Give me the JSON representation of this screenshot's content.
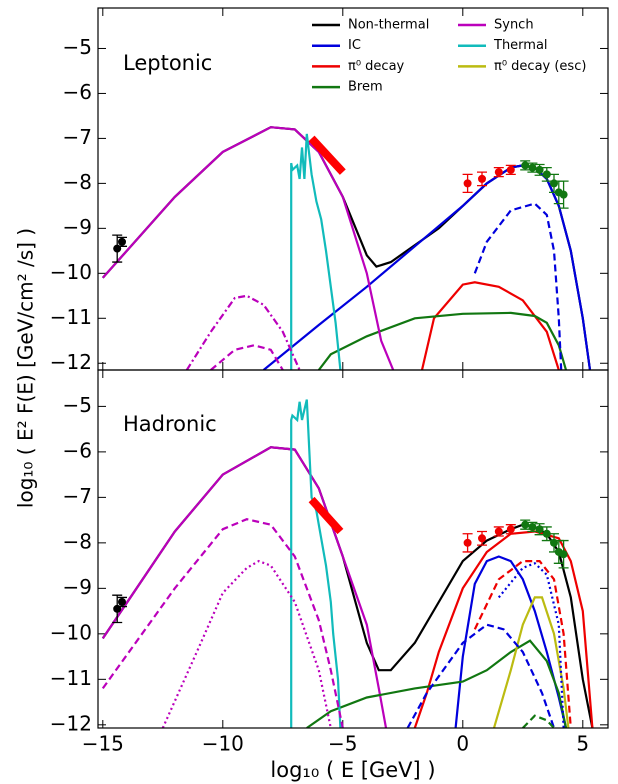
{
  "chart_data": [
    {
      "type": "line",
      "label": "Leptonic",
      "ylabel": "log₁₀ ( E² F(E) [GeV/cm² /s] )",
      "xlim": [
        -15.2,
        6.05
      ],
      "ylim": [
        -12.15,
        -4.1
      ],
      "yticks": [
        {
          "value": -5,
          "label": "−5"
        },
        {
          "value": -6,
          "label": "−6"
        },
        {
          "value": -7,
          "label": "−7"
        },
        {
          "value": -8,
          "label": "−8"
        },
        {
          "value": -9,
          "label": "−9"
        },
        {
          "value": -10,
          "label": "−10"
        },
        {
          "value": -11,
          "label": "−11"
        },
        {
          "value": -12,
          "label": "−12"
        }
      ],
      "series": [
        {
          "name": "Non-thermal",
          "color": "#000000",
          "dash": "solid",
          "x": [
            -15,
            -12,
            -10,
            -8,
            -7,
            -6,
            -5,
            -4,
            -3.6,
            -3,
            -1,
            0,
            1,
            2,
            2.5,
            3,
            3.5,
            4,
            4.5,
            5,
            5.3
          ],
          "values": [
            -10.1,
            -8.3,
            -7.3,
            -6.75,
            -6.8,
            -7.3,
            -8.3,
            -9.6,
            -9.85,
            -9.75,
            -9.0,
            -8.5,
            -8.0,
            -7.65,
            -7.6,
            -7.65,
            -7.9,
            -8.5,
            -9.5,
            -11,
            -12.15
          ]
        },
        {
          "name": "IC",
          "color": "#0000dd",
          "dash": "solid",
          "x": [
            -8.3,
            -6,
            -4,
            -2,
            0,
            1,
            2,
            2.5,
            3,
            3.5,
            4,
            4.5,
            5,
            5.3
          ],
          "values": [
            -12.15,
            -11.15,
            -10.3,
            -9.4,
            -8.5,
            -8.0,
            -7.65,
            -7.6,
            -7.65,
            -7.9,
            -8.5,
            -9.5,
            -11,
            -12.15
          ]
        },
        {
          "name": "π⁰ decay",
          "color": "#ee0000",
          "dash": "solid",
          "x": [
            -1.7,
            -1.2,
            0,
            0.5,
            1.5,
            2.5,
            3.5,
            4
          ],
          "values": [
            -12.15,
            -11,
            -10.25,
            -10.2,
            -10.3,
            -10.6,
            -11.3,
            -12.15
          ]
        },
        {
          "name": "Brem",
          "color": "#117711",
          "dash": "solid",
          "x": [
            -6,
            -5.5,
            -4,
            -2,
            0,
            2,
            3,
            3.5,
            4,
            4.3
          ],
          "values": [
            -12.15,
            -11.8,
            -11.4,
            -11.0,
            -10.9,
            -10.88,
            -10.95,
            -11.1,
            -11.6,
            -12.15
          ]
        },
        {
          "name": "Synch",
          "color": "#bb00bb",
          "dash": "solid",
          "x": [
            -15,
            -12,
            -10,
            -8,
            -7,
            -6,
            -5,
            -4,
            -3.4,
            -2.9
          ],
          "values": [
            -10.1,
            -8.3,
            -7.3,
            -6.75,
            -6.8,
            -7.3,
            -8.3,
            -10,
            -11.5,
            -12.15
          ]
        },
        {
          "name": "Thermal",
          "color": "#11bbbb",
          "dash": "solid",
          "x": [
            -7.15,
            -7.15,
            -7.1,
            -6.9,
            -6.8,
            -6.7,
            -6.6,
            -6.5,
            -6.3,
            -6.1,
            -5.9,
            -5.7,
            -5.5,
            -5.3,
            -5.1
          ],
          "values": [
            -12.15,
            -7.55,
            -7.7,
            -7.6,
            -7.9,
            -7.2,
            -7.9,
            -6.9,
            -7.8,
            -8.4,
            -8.8,
            -9.5,
            -10.3,
            -11.1,
            -12.15
          ]
        },
        {
          "color": "#0000dd",
          "dash": "dashed",
          "x": [
            0.5,
            1,
            2,
            3,
            3.5,
            3.8,
            4,
            4.1
          ],
          "values": [
            -10,
            -9.3,
            -8.6,
            -8.45,
            -8.7,
            -9.5,
            -11,
            -12.15
          ]
        },
        {
          "color": "#bb00bb",
          "dash": "dashdot",
          "x": [
            -11.5,
            -10.5,
            -9.5,
            -9,
            -8.3,
            -7.5,
            -6.8
          ],
          "values": [
            -12.15,
            -11.3,
            -10.55,
            -10.5,
            -10.7,
            -11.3,
            -12.15
          ]
        },
        {
          "color": "#bb00bb",
          "dash": "dashed",
          "x": [
            -10.5,
            -9.5,
            -8.7,
            -8,
            -7.5
          ],
          "values": [
            -12.15,
            -11.7,
            -11.6,
            -11.7,
            -12.15
          ]
        },
        {
          "color": "#ff0000",
          "dash": "solid",
          "width": 8,
          "x": [
            -6.3,
            -5.0
          ],
          "values": [
            -7.0,
            -7.75
          ]
        }
      ],
      "points": [
        {
          "color": "#000000",
          "x": [
            -14.4,
            -14.2
          ],
          "values": [
            -9.45,
            -9.3
          ],
          "errors": [
            0.3,
            0.1
          ]
        },
        {
          "color": "#ee0000",
          "x": [
            0.2,
            0.8,
            1.5,
            2.0
          ],
          "values": [
            -8.0,
            -7.9,
            -7.75,
            -7.7
          ],
          "errors": [
            0.2,
            0.15,
            0.1,
            0.1
          ]
        },
        {
          "color": "#117711",
          "x": [
            2.6,
            2.9,
            3.2,
            3.5,
            3.8,
            4.0,
            4.2
          ],
          "values": [
            -7.6,
            -7.65,
            -7.7,
            -7.8,
            -8.0,
            -8.2,
            -8.25
          ],
          "errors": [
            0.1,
            0.1,
            0.12,
            0.15,
            0.2,
            0.25,
            0.3
          ]
        }
      ]
    },
    {
      "type": "line",
      "label": "Hadronic",
      "xlabel": "log₁₀ ( E [GeV] )",
      "xlim": [
        -15.2,
        6.05
      ],
      "ylim": [
        -12.07,
        -4.2
      ],
      "xticks": [
        {
          "value": -15,
          "label": "−15"
        },
        {
          "value": -10,
          "label": "−10"
        },
        {
          "value": -5,
          "label": "−5"
        },
        0,
        5
      ],
      "yticks": [
        {
          "value": -5,
          "label": "−5"
        },
        {
          "value": -6,
          "label": "−6"
        },
        {
          "value": -7,
          "label": "−7"
        },
        {
          "value": -8,
          "label": "−8"
        },
        {
          "value": -9,
          "label": "−9"
        },
        {
          "value": -10,
          "label": "−10"
        },
        {
          "value": -11,
          "label": "−11"
        },
        {
          "value": -12,
          "label": "−12"
        }
      ],
      "series": [
        {
          "color": "#000000",
          "dash": "solid",
          "x": [
            -15,
            -12,
            -10,
            -8,
            -7,
            -6,
            -5,
            -4,
            -3.5,
            -3,
            -2,
            -1,
            0,
            1,
            2,
            2.5,
            3,
            3.5,
            4,
            4.5,
            5,
            5.4
          ],
          "values": [
            -10.1,
            -7.75,
            -6.5,
            -5.9,
            -5.95,
            -6.8,
            -8.3,
            -10.2,
            -10.8,
            -10.8,
            -10.2,
            -9.3,
            -8.4,
            -7.95,
            -7.7,
            -7.6,
            -7.65,
            -7.8,
            -8.2,
            -9.2,
            -11,
            -12.07
          ]
        },
        {
          "color": "#bb00bb",
          "dash": "solid",
          "x": [
            -15,
            -12,
            -10,
            -8,
            -7,
            -6,
            -5,
            -4,
            -3.5,
            -3.2
          ],
          "values": [
            -10.1,
            -7.75,
            -6.5,
            -5.9,
            -5.95,
            -6.8,
            -8.3,
            -9.8,
            -11.2,
            -12.07
          ]
        },
        {
          "color": "#0000dd",
          "dash": "solid",
          "x": [
            -0.3,
            0,
            0.5,
            1,
            1.5,
            2,
            2.5,
            3,
            3.5,
            4,
            4.3
          ],
          "values": [
            -12.07,
            -10.5,
            -8.9,
            -8.4,
            -8.3,
            -8.4,
            -8.8,
            -9.5,
            -10.4,
            -11.4,
            -12.07
          ]
        },
        {
          "color": "#ee0000",
          "dash": "solid",
          "x": [
            -2,
            -1.5,
            -1,
            0,
            1,
            2,
            3,
            4,
            4.5,
            5,
            5.4
          ],
          "values": [
            -12.07,
            -11.3,
            -10.4,
            -9.0,
            -8.2,
            -7.8,
            -7.75,
            -7.9,
            -8.4,
            -9.5,
            -12.07
          ]
        },
        {
          "color": "#117711",
          "dash": "solid",
          "x": [
            -6.5,
            -5.5,
            -4,
            -2,
            0,
            1,
            2,
            2.8,
            3.5,
            4,
            4.3
          ],
          "values": [
            -12.07,
            -11.7,
            -11.4,
            -11.2,
            -11.05,
            -10.8,
            -10.4,
            -10.15,
            -10.6,
            -11.3,
            -12.07
          ]
        },
        {
          "name": "π⁰ decay (esc)",
          "color": "#bbbb11",
          "dash": "solid",
          "x": [
            1.3,
            2,
            2.5,
            3,
            3.3,
            3.8,
            4.2,
            4.4
          ],
          "values": [
            -12.07,
            -10.8,
            -9.8,
            -9.2,
            -9.2,
            -10,
            -11.2,
            -12.07
          ]
        },
        {
          "color": "#11bbbb",
          "dash": "solid",
          "x": [
            -7.15,
            -7.15,
            -7.1,
            -6.9,
            -6.8,
            -6.7,
            -6.5,
            -6.3,
            -6.1,
            -5.9,
            -5.7,
            -5.5,
            -5.4,
            -5.2,
            -5.1
          ],
          "values": [
            -12.07,
            -5.3,
            -5.2,
            -5.3,
            -4.9,
            -5.3,
            -4.85,
            -7.0,
            -7.3,
            -7.9,
            -8.5,
            -9.3,
            -10,
            -11,
            -12.07
          ]
        },
        {
          "color": "#0000dd",
          "dash": "dashed",
          "x": [
            -2.3,
            -1.5,
            0,
            1,
            1.7,
            2.5,
            3.3,
            3.8
          ],
          "values": [
            -12.07,
            -11.3,
            -10.2,
            -9.8,
            -9.9,
            -10.4,
            -11.3,
            -12.07
          ]
        },
        {
          "color": "#0000dd",
          "dash": "dotted",
          "x": [
            1.5,
            2.5,
            3,
            3.5,
            4,
            4.2
          ],
          "values": [
            -9.2,
            -8.55,
            -8.45,
            -8.7,
            -9.8,
            -12.07
          ]
        },
        {
          "color": "#ee0000",
          "dash": "dashed",
          "x": [
            0.5,
            1.5,
            2.5,
            3.2,
            3.8,
            4.2,
            4.5
          ],
          "values": [
            -9.9,
            -8.8,
            -8.4,
            -8.4,
            -8.8,
            -10,
            -12.07
          ]
        },
        {
          "color": "#117711",
          "dash": "dashed",
          "x": [
            2.5,
            3,
            3.5,
            3.8
          ],
          "values": [
            -12.07,
            -11.8,
            -11.9,
            -12.07
          ]
        },
        {
          "color": "#bb00bb",
          "dash": "dashed",
          "x": [
            -15,
            -12,
            -10,
            -9,
            -8,
            -7,
            -6,
            -5.5,
            -5
          ],
          "values": [
            -11.2,
            -9,
            -7.7,
            -7.48,
            -7.6,
            -8.3,
            -9.7,
            -10.8,
            -12.07
          ]
        },
        {
          "color": "#bb00bb",
          "dash": "dotted",
          "x": [
            -12.5,
            -11,
            -10,
            -9,
            -8.5,
            -8,
            -7,
            -6,
            -5.5
          ],
          "values": [
            -12.07,
            -10.3,
            -9.1,
            -8.55,
            -8.4,
            -8.5,
            -9.3,
            -10.8,
            -12.07
          ]
        },
        {
          "color": "#ff0000",
          "dash": "solid",
          "width": 8,
          "x": [
            -6.3,
            -5.1
          ],
          "values": [
            -7.05,
            -7.75
          ]
        }
      ],
      "points": [
        {
          "color": "#000000",
          "x": [
            -14.4,
            -14.2
          ],
          "values": [
            -9.45,
            -9.3
          ],
          "errors": [
            0.3,
            0.1
          ]
        },
        {
          "color": "#ee0000",
          "x": [
            0.2,
            0.8,
            1.5,
            2.0
          ],
          "values": [
            -8.0,
            -7.9,
            -7.75,
            -7.7
          ],
          "errors": [
            0.2,
            0.15,
            0.1,
            0.1
          ]
        },
        {
          "color": "#117711",
          "x": [
            2.6,
            2.9,
            3.2,
            3.5,
            3.8,
            4.0,
            4.2
          ],
          "values": [
            -7.6,
            -7.65,
            -7.7,
            -7.8,
            -8.0,
            -8.2,
            -8.25
          ],
          "errors": [
            0.1,
            0.1,
            0.12,
            0.15,
            0.2,
            0.25,
            0.3
          ]
        }
      ]
    }
  ]
}
